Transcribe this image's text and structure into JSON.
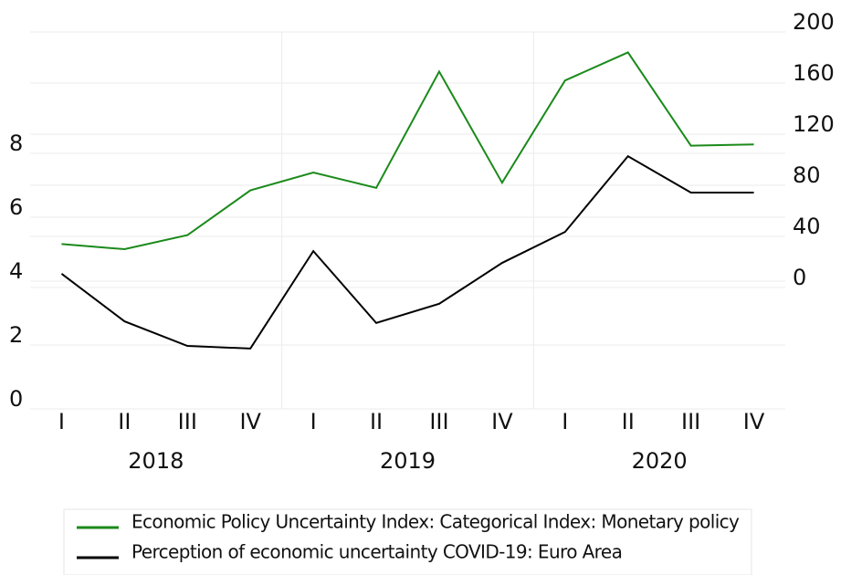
{
  "chart_data": {
    "type": "line",
    "categories": [
      "I",
      "II",
      "III",
      "IV",
      "I",
      "II",
      "III",
      "IV",
      "I",
      "II",
      "III",
      "IV"
    ],
    "groups": [
      "2018",
      "2019",
      "2020"
    ],
    "series": [
      {
        "name": "Economic Policy Uncertainty Index: Categorical Index: Monetary policy",
        "color": "#1a8a1a",
        "axis": "y2",
        "values": [
          34,
          30,
          41,
          76,
          90,
          78,
          169,
          82,
          162,
          184,
          111,
          112
        ]
      },
      {
        "name": "Perception of economic uncertainty COVID-19: Euro Area",
        "color": "#000000",
        "values": [
          4.23,
          2.74,
          1.97,
          1.89,
          4.94,
          2.69,
          3.29,
          4.57,
          5.54,
          7.91,
          6.77,
          6.77
        ]
      }
    ],
    "ylim": [
      0,
      11.8
    ],
    "yticks": [
      0,
      2,
      4,
      6,
      8
    ],
    "y2lim": [
      -95,
      200
    ],
    "y2ticks": [
      0,
      40,
      80,
      120,
      160,
      200
    ],
    "grid": true,
    "legend": "bottom"
  }
}
